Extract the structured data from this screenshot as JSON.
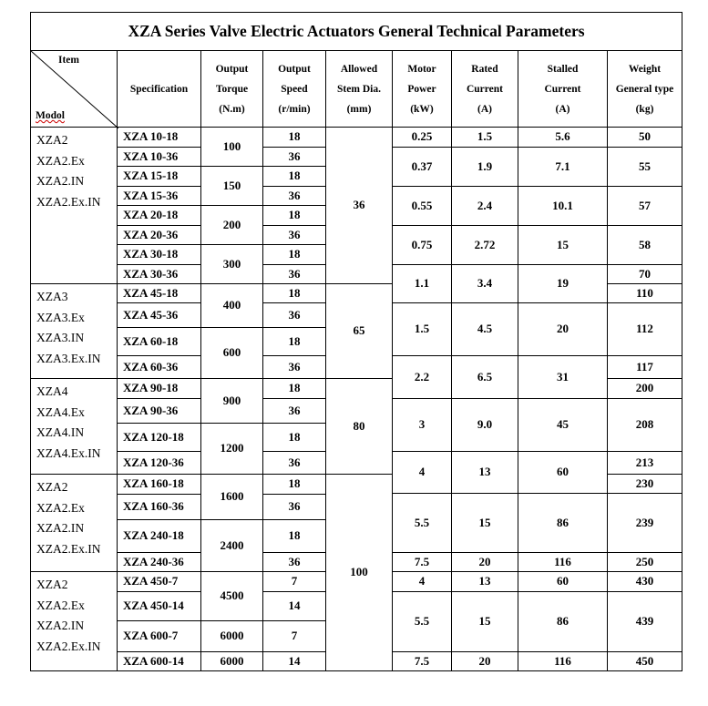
{
  "title": "XZA Series Valve Electric Actuators General Technical Parameters",
  "header": {
    "item_label": "Item",
    "model_label": "Modol",
    "columns": [
      "Specification",
      "Output\nTorque\n(N.m)",
      "Output\nSpeed\n(r/min)",
      "Allowed\nStem Dia.\n(mm)",
      "Motor\nPower\n(kW)",
      "Rated\nCurrent\n(A)",
      "Stalled\nCurrent\n(A)",
      "Weight\nGeneral type\n(kg)"
    ]
  },
  "model_groups": [
    "XZA2\nXZA2.Ex\nXZA2.IN\nXZA2.Ex.IN",
    "XZA3\nXZA3.Ex\nXZA3.IN\nXZA3.Ex.IN",
    "XZA4\nXZA4.Ex\nXZA4.IN\nXZA4.Ex.IN",
    "XZA2\nXZA2.Ex\nXZA2.IN\nXZA2.Ex.IN",
    "XZA2\nXZA2.Ex\nXZA2.IN\nXZA2.Ex.IN"
  ],
  "specifications": [
    "XZA 10-18",
    "XZA 10-36",
    "XZA 15-18",
    "XZA 15-36",
    "XZA 20-18",
    "XZA 20-36",
    "XZA 30-18",
    "XZA 30-36",
    "XZA 45-18",
    "XZA 45-36",
    "XZA 60-18",
    "XZA 60-36",
    "XZA 90-18",
    "XZA 90-36",
    "XZA 120-18",
    "XZA 120-36",
    "XZA 160-18",
    "XZA 160-36",
    "XZA 240-18",
    "XZA 240-36",
    "XZA 450-7",
    "XZA 450-14",
    "XZA 600-7",
    "XZA 600-14"
  ],
  "torques": [
    "100",
    "150",
    "200",
    "300",
    "400",
    "600",
    "900",
    "1200",
    "1600",
    "2400",
    "4500",
    "6000",
    "6000"
  ],
  "speeds": [
    "18",
    "36",
    "18",
    "36",
    "18",
    "36",
    "18",
    "36",
    "18",
    "36",
    "18",
    "36",
    "18",
    "36",
    "18",
    "36",
    "18",
    "36",
    "18",
    "36",
    "7",
    "14",
    "7",
    "14"
  ],
  "stem_dia": [
    "36",
    "65",
    "80",
    "100"
  ],
  "motor_rows": [
    {
      "power": "0.25",
      "rated": "1.5",
      "stalled": "5.6"
    },
    {
      "power": "0.37",
      "rated": "1.9",
      "stalled": "7.1"
    },
    {
      "power": "0.55",
      "rated": "2.4",
      "stalled": "10.1"
    },
    {
      "power": "0.75",
      "rated": "2.72",
      "stalled": "15"
    },
    {
      "power": "1.1",
      "rated": "3.4",
      "stalled": "19"
    },
    {
      "power": "1.5",
      "rated": "4.5",
      "stalled": "20"
    },
    {
      "power": "2.2",
      "rated": "6.5",
      "stalled": "31"
    },
    {
      "power": "3",
      "rated": "9.0",
      "stalled": "45"
    },
    {
      "power": "4",
      "rated": "13",
      "stalled": "60"
    },
    {
      "power": "5.5",
      "rated": "15",
      "stalled": "86"
    },
    {
      "power": "7.5",
      "rated": "20",
      "stalled": "116"
    },
    {
      "power": "4",
      "rated": "13",
      "stalled": "60"
    },
    {
      "power": "5.5",
      "rated": "15",
      "stalled": "86"
    },
    {
      "power": "7.5",
      "rated": "20",
      "stalled": "116"
    }
  ],
  "weights": [
    "50",
    "55",
    "57",
    "58",
    "70",
    "110",
    "112",
    "117",
    "200",
    "208",
    "213",
    "230",
    "239",
    "250",
    "430",
    "439",
    "450"
  ]
}
